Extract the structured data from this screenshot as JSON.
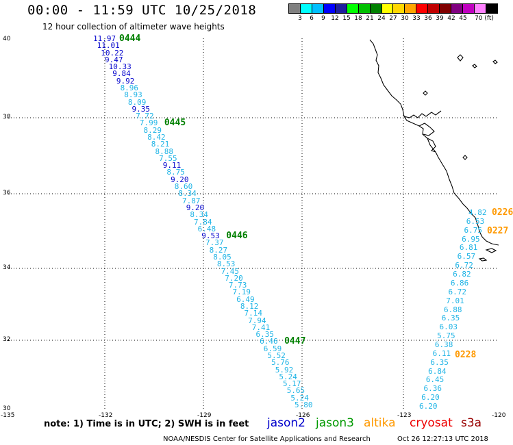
{
  "header": {
    "title": "00:00 - 11:59 UTC 10/25/2018",
    "subtitle": "12 hour collection of altimeter wave heights"
  },
  "colorbar": {
    "colors": [
      "#808080",
      "#00ffff",
      "#00bfff",
      "#0000ff",
      "#1e1e9e",
      "#00ff00",
      "#00c000",
      "#008000",
      "#ffff00",
      "#ffd700",
      "#ffa500",
      "#ff0000",
      "#c00000",
      "#800000",
      "#800080",
      "#c000c0",
      "#ff80ff",
      "#000000"
    ],
    "labels": [
      "3",
      "6",
      "9",
      "12",
      "15",
      "18",
      "21",
      "24",
      "27",
      "30",
      "33",
      "36",
      "39",
      "42",
      "45",
      "70 (ft)"
    ]
  },
  "axes": {
    "lat_labels": [
      "40",
      "38",
      "36",
      "34",
      "32",
      "30"
    ],
    "lon_labels": [
      "-135",
      "-132",
      "-129",
      "-126",
      "-123",
      "-120"
    ]
  },
  "tracks": {
    "jason2": {
      "color_scale": {
        "light": "#1fb4e6",
        "dark": "#0000cc"
      },
      "segments": [
        {
          "tag": "0444",
          "tag_color": "#008000",
          "values": [
            "11.97",
            "11.01",
            "10.22",
            "9.47",
            "10.33",
            "9.84",
            "9.92",
            "8.96",
            "8.93",
            "8.09",
            "9.35",
            "7.72"
          ]
        },
        {
          "tag": "0445",
          "tag_color": "#008000",
          "values": [
            "7.99",
            "8.29",
            "8.42",
            "8.21",
            "8.88",
            "7.55",
            "9.11",
            "8.75",
            "9.20",
            "8.60",
            "8.34",
            "7.87",
            "9.20",
            "8.34",
            "7.84",
            "6.48"
          ]
        },
        {
          "tag": "0446",
          "tag_color": "#008000",
          "values": [
            "9.53",
            "7.37",
            "8.27",
            "8.05",
            "8.53",
            "7.45",
            "7.20",
            "7.73",
            "7.19",
            "6.49",
            "8.12",
            "7.14",
            "7.94",
            "7.41",
            "6.35"
          ]
        },
        {
          "tag": "0447",
          "tag_color": "#008000",
          "values": [
            "6.46",
            "6.59",
            "5.52",
            "5.76",
            "5.92",
            "5.24",
            "5.17",
            "5.65",
            "5.24",
            "5.80"
          ]
        }
      ]
    },
    "altika": {
      "tags": [
        {
          "label": "0226",
          "color": "#ff9900"
        },
        {
          "label": "0227",
          "color": "#ff9900"
        },
        {
          "label": "0228",
          "color": "#ff9900"
        }
      ],
      "values": [
        "4.82",
        "6.53",
        "6.75",
        "6.95",
        "6.81",
        "6.57",
        "6.72",
        "6.82",
        "6.86",
        "6.72",
        "7.01",
        "6.88",
        "6.35",
        "6.03",
        "5.75",
        "6.38",
        "6.11",
        "6.35",
        "6.84",
        "6.45",
        "6.36",
        "6.20",
        "6.20"
      ]
    }
  },
  "footer": {
    "note": "note: 1) Time is in UTC; 2) SWH is in feet",
    "missions": [
      {
        "name": "jason2",
        "color": "#0000cc"
      },
      {
        "name": "jason3",
        "color": "#009900"
      },
      {
        "name": "altika",
        "color": "#ff9900"
      },
      {
        "name": "cryosat",
        "color": "#ee0000"
      },
      {
        "name": "s3a",
        "color": "#990000"
      }
    ],
    "credit": "NOAA/NESDIS Center for Satellite Applications and Research",
    "timestamp": "Oct 26 12:27:13 UTC 2018"
  }
}
